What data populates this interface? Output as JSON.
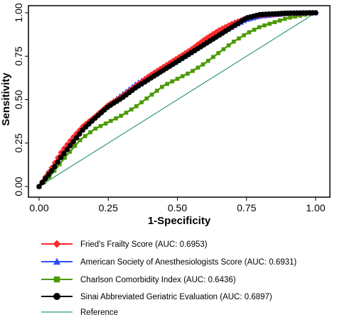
{
  "chart_data": {
    "type": "line",
    "xlabel": "1-Specificity",
    "ylabel": "Sensitivity",
    "xlim": [
      0,
      1
    ],
    "ylim": [
      0,
      1
    ],
    "x_ticks": [
      "0.00",
      "0.25",
      "0.50",
      "0.75",
      "1.00"
    ],
    "y_ticks": [
      "0.00",
      "0.25",
      "0.50",
      "0.75",
      "1.00"
    ],
    "grid": false,
    "legend_position": "bottom",
    "series": [
      {
        "name": "Fried's Frailty Score (AUC: 0.6953)",
        "color": "#ff2a2a",
        "marker": "diamond",
        "points": [
          [
            0,
            0
          ],
          [
            0.02,
            0.05
          ],
          [
            0.05,
            0.12
          ],
          [
            0.08,
            0.2
          ],
          [
            0.12,
            0.28
          ],
          [
            0.16,
            0.35
          ],
          [
            0.2,
            0.4
          ],
          [
            0.25,
            0.47
          ],
          [
            0.3,
            0.52
          ],
          [
            0.35,
            0.58
          ],
          [
            0.4,
            0.64
          ],
          [
            0.45,
            0.69
          ],
          [
            0.5,
            0.74
          ],
          [
            0.55,
            0.79
          ],
          [
            0.6,
            0.85
          ],
          [
            0.65,
            0.9
          ],
          [
            0.7,
            0.94
          ],
          [
            0.75,
            0.97
          ],
          [
            0.8,
            0.985
          ],
          [
            0.9,
            0.995
          ],
          [
            1,
            1
          ]
        ]
      },
      {
        "name": "American Society of Anesthesiologists Score (AUC: 0.6931)",
        "color": "#2a4dff",
        "marker": "triangle",
        "points": [
          [
            0,
            0
          ],
          [
            0.02,
            0.05
          ],
          [
            0.05,
            0.11
          ],
          [
            0.08,
            0.18
          ],
          [
            0.12,
            0.26
          ],
          [
            0.16,
            0.34
          ],
          [
            0.2,
            0.4
          ],
          [
            0.25,
            0.47
          ],
          [
            0.3,
            0.53
          ],
          [
            0.35,
            0.59
          ],
          [
            0.4,
            0.64
          ],
          [
            0.45,
            0.68
          ],
          [
            0.5,
            0.72
          ],
          [
            0.55,
            0.77
          ],
          [
            0.6,
            0.83
          ],
          [
            0.65,
            0.88
          ],
          [
            0.7,
            0.92
          ],
          [
            0.75,
            0.96
          ],
          [
            0.8,
            0.98
          ],
          [
            0.9,
            0.995
          ],
          [
            1,
            1
          ]
        ]
      },
      {
        "name": "Charlson Comorbidity Index (AUC: 0.6436)",
        "color": "#4a9a00",
        "marker": "square",
        "points": [
          [
            0,
            0
          ],
          [
            0.03,
            0.04
          ],
          [
            0.06,
            0.1
          ],
          [
            0.1,
            0.18
          ],
          [
            0.15,
            0.27
          ],
          [
            0.2,
            0.33
          ],
          [
            0.25,
            0.37
          ],
          [
            0.3,
            0.41
          ],
          [
            0.35,
            0.46
          ],
          [
            0.4,
            0.52
          ],
          [
            0.45,
            0.58
          ],
          [
            0.5,
            0.62
          ],
          [
            0.55,
            0.66
          ],
          [
            0.6,
            0.71
          ],
          [
            0.65,
            0.77
          ],
          [
            0.7,
            0.83
          ],
          [
            0.75,
            0.88
          ],
          [
            0.8,
            0.92
          ],
          [
            0.9,
            0.97
          ],
          [
            1,
            1
          ]
        ]
      },
      {
        "name": "Sinai Abbreviated Geriatric Evaluation (AUC: 0.6897)",
        "color": "#000000",
        "marker": "circle",
        "points": [
          [
            0,
            0
          ],
          [
            0.02,
            0.04
          ],
          [
            0.05,
            0.1
          ],
          [
            0.08,
            0.17
          ],
          [
            0.12,
            0.25
          ],
          [
            0.16,
            0.33
          ],
          [
            0.2,
            0.39
          ],
          [
            0.25,
            0.46
          ],
          [
            0.3,
            0.51
          ],
          [
            0.35,
            0.57
          ],
          [
            0.4,
            0.62
          ],
          [
            0.45,
            0.67
          ],
          [
            0.5,
            0.72
          ],
          [
            0.55,
            0.77
          ],
          [
            0.6,
            0.82
          ],
          [
            0.65,
            0.87
          ],
          [
            0.7,
            0.92
          ],
          [
            0.75,
            0.97
          ],
          [
            0.8,
            0.99
          ],
          [
            0.9,
            0.998
          ],
          [
            1,
            1
          ]
        ]
      },
      {
        "name": "Reference",
        "color": "#2e9a6e",
        "marker": "none",
        "points": [
          [
            0,
            0
          ],
          [
            1,
            1
          ]
        ]
      }
    ]
  }
}
